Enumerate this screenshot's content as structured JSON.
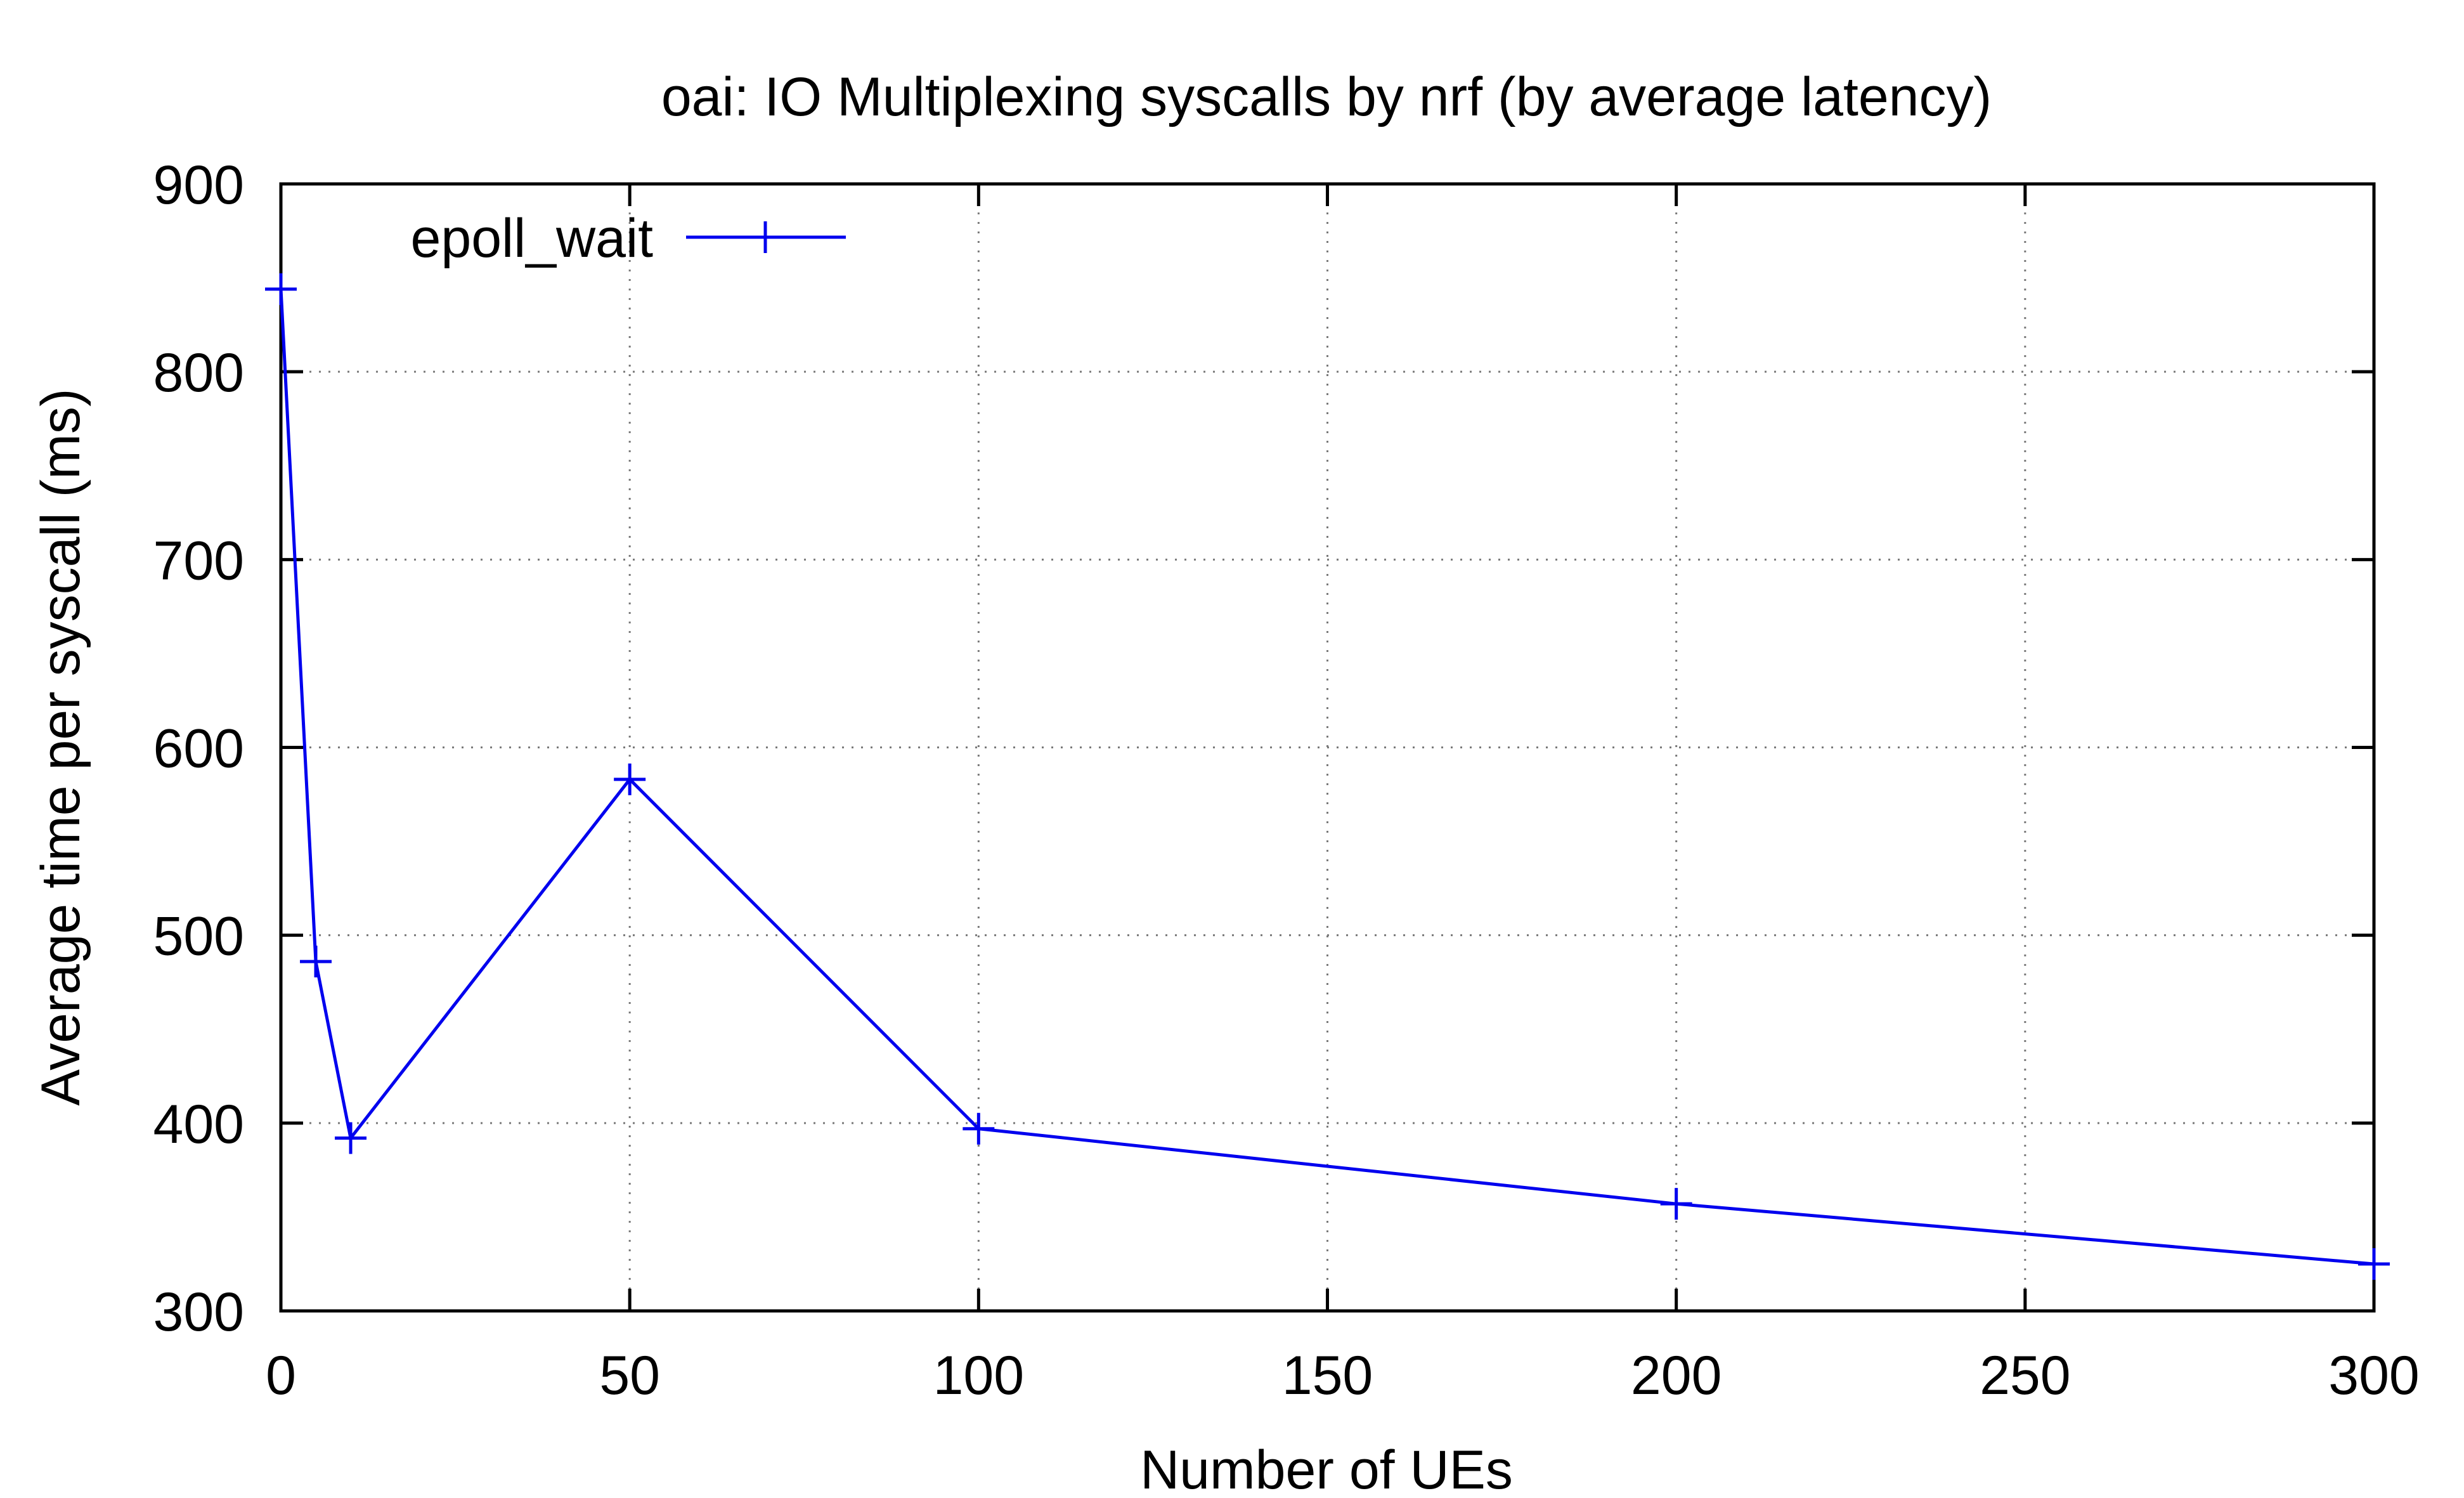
{
  "chart_data": {
    "type": "line",
    "title": "oai: IO Multiplexing syscalls by nrf (by average latency)",
    "xlabel": "Number of UEs",
    "ylabel": "Average time per syscall (ms)",
    "xlim": [
      0,
      300
    ],
    "ylim": [
      300,
      900
    ],
    "xticks": [
      0,
      50,
      100,
      150,
      200,
      250,
      300
    ],
    "yticks": [
      300,
      400,
      500,
      600,
      700,
      800,
      900
    ],
    "xtick_labels": [
      "0",
      "50",
      "100",
      "150",
      "200",
      "250",
      "300"
    ],
    "ytick_labels": [
      "300",
      "400",
      "500",
      "600",
      "700",
      "800",
      "900"
    ],
    "grid": true,
    "legend_position": "top-left",
    "series": [
      {
        "name": "epoll_wait",
        "color": "#0000ee",
        "marker": "plus",
        "x": [
          0,
          5,
          10,
          50,
          100,
          200,
          300
        ],
        "y": [
          844,
          486,
          392,
          583,
          397,
          357,
          325
        ]
      }
    ]
  }
}
